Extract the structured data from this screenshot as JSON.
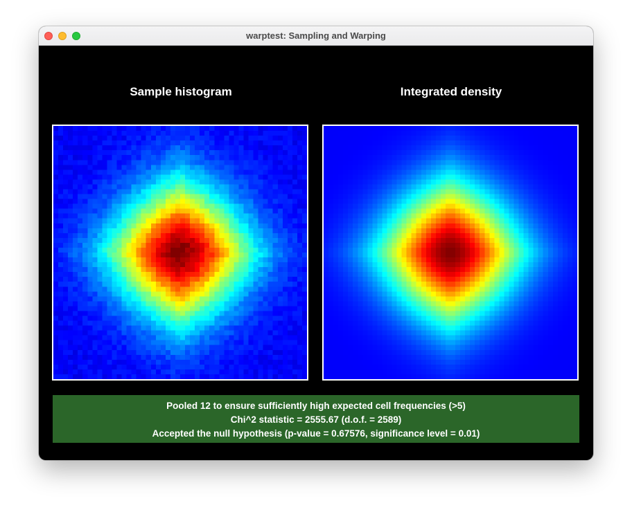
{
  "window": {
    "title": "warptest: Sampling and Warping"
  },
  "panels": {
    "left_caption": "Sample histogram",
    "right_caption": "Integrated density"
  },
  "status": {
    "line1": "Pooled 12 to ensure sufficiently high expected cell frequencies (>5)",
    "line2": "Chi^2 statistic = 2555.67 (d.o.f. = 2589)",
    "line3": "Accepted the null hypothesis (p-value = 0.67576, significance level = 0.01)"
  },
  "colors": {
    "window_bg": "#000000",
    "status_bg": "#2b6629",
    "panel_border": "#ffffff",
    "close_button": "#fe5f57",
    "minimize_button": "#febc2e",
    "maximize_button": "#28c840"
  }
}
